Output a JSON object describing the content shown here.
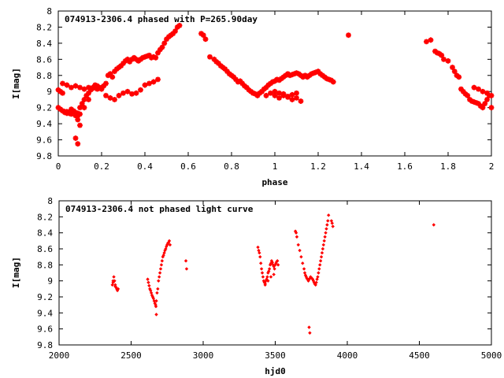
{
  "chart_data": [
    {
      "type": "scatter",
      "title": "074913-2306.4 phased with P=265.90day",
      "xlabel": "phase",
      "ylabel": "I[mag]",
      "xlim": [
        0,
        2
      ],
      "ylim": [
        8,
        9.8
      ],
      "y_inverted": true,
      "x_ticks": [
        "0",
        "0.2",
        "0.4",
        "0.6",
        "0.8",
        "1",
        "1.2",
        "1.4",
        "1.6",
        "1.8",
        "2"
      ],
      "y_ticks": [
        "8",
        "8.2",
        "8.4",
        "8.6",
        "8.8",
        "9",
        "9.2",
        "9.4",
        "9.6",
        "9.8"
      ],
      "marker": "star",
      "color": "#ff0000",
      "series": [
        {
          "x": [
            0.0,
            0.01,
            0.02,
            0.03,
            0.04,
            0.05,
            0.06,
            0.07,
            0.08,
            0.09,
            0.1,
            0.11,
            0.12,
            0.13,
            0.14,
            0.15,
            0.16,
            0.17,
            0.18,
            0.19,
            0.2,
            0.21,
            0.22,
            0.23,
            0.24,
            0.25,
            0.26,
            0.27,
            0.28,
            0.29,
            0.3,
            0.31,
            0.32,
            0.33,
            0.34,
            0.35,
            0.36,
            0.37,
            0.38,
            0.39,
            0.4,
            0.41,
            0.42,
            0.43,
            0.44,
            0.45,
            0.46,
            0.47,
            0.48,
            0.49,
            0.5,
            0.51,
            0.52,
            0.53,
            0.54,
            0.55,
            0.56,
            0.0,
            0.01,
            0.02,
            0.03,
            0.04,
            0.05,
            0.06,
            0.07,
            0.08,
            0.09,
            0.1,
            0.02,
            0.04,
            0.06,
            0.08,
            0.1,
            0.12,
            0.14,
            0.16,
            0.18,
            0.2,
            0.22,
            0.24,
            0.26,
            0.28,
            0.3,
            0.32,
            0.34,
            0.36,
            0.38,
            0.4,
            0.42,
            0.44,
            0.46,
            0.08,
            0.09,
            0.1,
            0.09,
            0.12,
            0.14,
            0.66,
            0.67,
            0.68,
            0.7,
            0.72,
            0.73,
            0.74,
            0.75,
            0.76,
            0.77,
            0.78,
            0.79,
            0.8,
            0.81,
            0.82,
            0.83,
            0.84,
            0.85,
            0.86,
            0.87,
            0.88,
            0.89,
            0.9,
            0.91,
            0.92,
            0.93,
            0.94,
            0.95,
            0.96,
            0.97,
            0.98,
            0.99,
            1.0,
            1.01,
            1.02,
            1.03,
            1.04,
            1.05,
            1.06,
            1.07,
            1.08,
            1.09,
            1.1,
            1.11,
            1.12,
            1.13,
            1.14,
            1.15,
            1.16,
            1.17,
            1.18,
            1.19,
            1.2,
            1.21,
            1.22,
            1.23,
            1.24,
            1.25,
            1.26,
            1.27,
            0.9,
            0.92,
            0.94,
            0.96,
            0.98,
            1.0,
            1.02,
            1.04,
            1.06,
            1.08,
            1.1,
            1.12,
            1.0,
            1.02,
            1.04,
            1.06,
            1.08,
            1.1,
            1.34,
            1.7,
            1.72,
            1.74,
            1.75,
            1.76,
            1.77,
            1.78,
            1.8,
            1.82,
            1.83,
            1.84,
            1.85,
            1.86,
            1.87,
            1.88,
            1.89,
            1.9,
            1.91,
            1.92,
            1.93,
            1.94,
            1.95,
            1.96,
            1.97,
            1.98,
            1.99,
            2.0,
            1.92,
            1.94,
            1.96,
            1.98,
            2.0
          ],
          "y": [
            8.98,
            9.0,
            9.02,
            9.25,
            9.27,
            9.26,
            9.28,
            9.25,
            9.3,
            9.27,
            9.2,
            9.15,
            9.1,
            9.05,
            9.02,
            8.98,
            8.95,
            8.92,
            8.97,
            8.95,
            8.95,
            8.93,
            8.9,
            8.8,
            8.78,
            8.82,
            8.75,
            8.72,
            8.7,
            8.68,
            8.65,
            8.62,
            8.6,
            8.63,
            8.6,
            8.58,
            8.6,
            8.62,
            8.6,
            8.58,
            8.57,
            8.56,
            8.55,
            8.58,
            8.57,
            8.58,
            8.52,
            8.48,
            8.45,
            8.4,
            8.35,
            8.32,
            8.3,
            8.28,
            8.25,
            8.2,
            8.18,
            9.2,
            9.22,
            9.24,
            9.26,
            9.25,
            9.27,
            9.22,
            9.24,
            9.26,
            9.3,
            9.28,
            8.9,
            8.92,
            8.95,
            8.93,
            8.95,
            8.97,
            8.95,
            8.96,
            8.93,
            8.97,
            9.05,
            9.08,
            9.1,
            9.05,
            9.02,
            9.0,
            9.03,
            9.02,
            8.98,
            8.92,
            8.9,
            8.88,
            8.85,
            9.58,
            9.65,
            9.42,
            9.35,
            9.2,
            9.1,
            8.28,
            8.3,
            8.35,
            8.57,
            8.6,
            8.63,
            8.65,
            8.68,
            8.7,
            8.72,
            8.75,
            8.78,
            8.8,
            8.82,
            8.85,
            8.88,
            8.87,
            8.9,
            8.93,
            8.95,
            8.98,
            9.0,
            9.02,
            9.03,
            9.05,
            9.02,
            9.0,
            8.97,
            8.95,
            8.92,
            8.9,
            8.88,
            8.87,
            8.85,
            8.86,
            8.84,
            8.82,
            8.8,
            8.78,
            8.8,
            8.79,
            8.78,
            8.77,
            8.78,
            8.8,
            8.82,
            8.8,
            8.82,
            8.8,
            8.78,
            8.77,
            8.76,
            8.75,
            8.78,
            8.8,
            8.82,
            8.84,
            8.85,
            8.86,
            8.88,
            9.02,
            9.04,
            9.0,
            9.05,
            9.02,
            9.05,
            9.08,
            9.03,
            9.06,
            9.1,
            9.08,
            9.12,
            9.0,
            9.02,
            9.05,
            9.07,
            9.04,
            9.02,
            8.3,
            8.38,
            8.36,
            8.5,
            8.52,
            8.53,
            8.55,
            8.6,
            8.62,
            8.7,
            8.75,
            8.8,
            8.82,
            8.97,
            9.0,
            9.03,
            9.05,
            9.1,
            9.12,
            9.13,
            9.14,
            9.15,
            9.18,
            9.2,
            9.15,
            9.1,
            9.05,
            9.2,
            8.95,
            8.97,
            9.0,
            9.02,
            9.05
          ]
        }
      ]
    },
    {
      "type": "scatter",
      "title": "074913-2306.4 not phased light curve",
      "xlabel": "hjd0",
      "ylabel": "I[mag]",
      "xlim": [
        2000,
        5000
      ],
      "ylim": [
        8,
        9.8
      ],
      "y_inverted": true,
      "x_ticks": [
        "2000",
        "2500",
        "3000",
        "3500",
        "4000",
        "4500",
        "5000"
      ],
      "y_ticks": [
        "8",
        "8.2",
        "8.4",
        "8.6",
        "8.8",
        "9",
        "9.2",
        "9.4",
        "9.6",
        "9.8"
      ],
      "marker": "diamond",
      "color": "#ff0000",
      "series": [
        {
          "x": [
            2370,
            2375,
            2380,
            2385,
            2390,
            2395,
            2400,
            2405,
            2410,
            2375,
            2390,
            2615,
            2620,
            2625,
            2630,
            2635,
            2640,
            2645,
            2650,
            2655,
            2660,
            2665,
            2670,
            2672,
            2675,
            2680,
            2685,
            2690,
            2695,
            2700,
            2705,
            2710,
            2715,
            2720,
            2725,
            2730,
            2735,
            2740,
            2745,
            2750,
            2755,
            2760,
            2765,
            2770,
            2675,
            2880,
            2885,
            3380,
            3385,
            3390,
            3395,
            3400,
            3405,
            3410,
            3415,
            3420,
            3425,
            3430,
            3435,
            3440,
            3445,
            3450,
            3455,
            3460,
            3465,
            3470,
            3475,
            3480,
            3485,
            3490,
            3495,
            3500,
            3505,
            3510,
            3515,
            3520,
            3430,
            3450,
            3470,
            3490,
            3640,
            3645,
            3650,
            3660,
            3670,
            3680,
            3690,
            3700,
            3705,
            3710,
            3715,
            3720,
            3725,
            3730,
            3735,
            3740,
            3745,
            3750,
            3755,
            3760,
            3765,
            3770,
            3775,
            3780,
            3785,
            3790,
            3795,
            3800,
            3805,
            3810,
            3815,
            3820,
            3825,
            3830,
            3835,
            3840,
            3845,
            3850,
            3855,
            3860,
            3865,
            3870,
            3890,
            3895,
            3900,
            3735,
            3740,
            4600
          ],
          "y": [
            9.05,
            9.0,
            8.95,
            9.0,
            9.05,
            9.08,
            9.1,
            9.12,
            9.1,
            9.02,
            9.07,
            8.98,
            9.02,
            9.06,
            9.1,
            9.12,
            9.15,
            9.18,
            9.2,
            9.22,
            9.25,
            9.28,
            9.3,
            9.32,
            9.25,
            9.15,
            9.1,
            9.0,
            8.95,
            8.9,
            8.85,
            8.8,
            8.75,
            8.7,
            8.68,
            8.65,
            8.62,
            8.6,
            8.57,
            8.55,
            8.53,
            8.52,
            8.5,
            8.55,
            9.42,
            8.75,
            8.85,
            8.58,
            8.62,
            8.65,
            8.7,
            8.78,
            8.85,
            8.9,
            8.95,
            9.0,
            9.02,
            9.03,
            9.0,
            8.98,
            8.95,
            8.9,
            8.88,
            8.85,
            8.8,
            8.78,
            8.75,
            8.77,
            8.8,
            8.82,
            8.85,
            8.8,
            8.78,
            8.76,
            8.75,
            8.8,
            9.05,
            9.0,
            8.95,
            8.92,
            8.38,
            8.4,
            8.45,
            8.55,
            8.62,
            8.7,
            8.78,
            8.85,
            8.9,
            8.93,
            8.95,
            8.97,
            8.98,
            9.0,
            8.98,
            8.97,
            8.95,
            8.96,
            8.97,
            8.98,
            9.0,
            9.02,
            9.04,
            9.05,
            9.02,
            8.98,
            8.95,
            8.9,
            8.85,
            8.8,
            8.75,
            8.7,
            8.65,
            8.6,
            8.55,
            8.5,
            8.45,
            8.4,
            8.35,
            8.3,
            8.25,
            8.18,
            8.25,
            8.28,
            8.32,
            9.58,
            9.65,
            8.3
          ]
        }
      ]
    }
  ]
}
